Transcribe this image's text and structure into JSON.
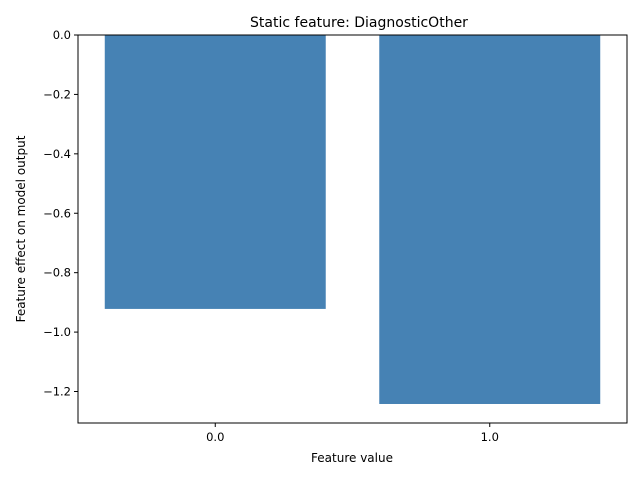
{
  "chart_data": {
    "type": "bar",
    "title": "Static feature: DiagnosticOther",
    "xlabel": "Feature value",
    "ylabel": "Feature effect on model output",
    "categories": [
      "0.0",
      "1.0"
    ],
    "values": [
      -0.922,
      -1.242
    ],
    "ylim": [
      -1.306,
      0.0
    ],
    "yticks": [
      0.0,
      -0.2,
      -0.4,
      -0.6,
      -0.8,
      -1.0,
      -1.2
    ],
    "ytick_labels": [
      "0.0",
      "−0.2",
      "−0.4",
      "−0.6",
      "−0.8",
      "−1.0",
      "−1.2"
    ],
    "bar_color": "#4682b4",
    "grid": false,
    "legend": "none"
  }
}
